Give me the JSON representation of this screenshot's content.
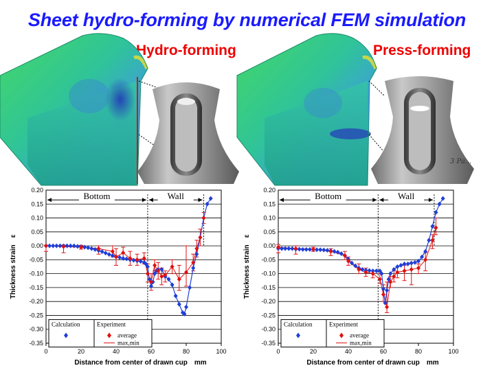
{
  "title": "Sheet hydro-forming by numerical FEM simulation",
  "panels": [
    {
      "method": "Hydro-forming"
    },
    {
      "method": "Press-forming",
      "photo_note": "3 Pa..."
    }
  ],
  "colors": {
    "title": "#1a1aff",
    "method": "#ee0000",
    "calculation": "#1f3fd6",
    "experiment": "#e01010"
  },
  "chart_data": [
    {
      "type": "line",
      "xlabel": "Distance from center of drawn cup　mm",
      "ylabel": "Thickness strain　ε",
      "xlim": [
        0,
        100
      ],
      "ylim": [
        -0.35,
        0.2
      ],
      "x_ticks": [
        "0",
        "20",
        "40",
        "60",
        "80",
        "100"
      ],
      "y_ticks": [
        "0.20",
        "0.15",
        "0.10",
        "0.05",
        "0.00",
        "-0.05",
        "-0.10",
        "-0.15",
        "-0.20",
        "-0.25",
        "-0.30",
        "-0.35"
      ],
      "grid": true,
      "regions": [
        {
          "label": "Bottom",
          "from": 0,
          "to": 58
        },
        {
          "label": "Wall",
          "from": 58,
          "to": 90
        }
      ],
      "legend": {
        "calculation": "Calculation",
        "experiment": "Experiment",
        "average": "average",
        "maxmin": "max,min"
      },
      "legend_position": "bottom-left",
      "series": [
        {
          "name": "Calculation",
          "x": [
            0,
            2,
            4,
            6,
            8,
            10,
            12,
            14,
            16,
            18,
            20,
            22,
            24,
            26,
            28,
            30,
            32,
            34,
            36,
            38,
            40,
            42,
            44,
            46,
            48,
            50,
            52,
            54,
            56,
            57,
            58,
            59,
            60,
            61,
            62,
            63,
            64,
            66,
            68,
            70,
            72,
            74,
            76,
            78,
            79,
            80,
            82,
            84,
            86,
            88,
            90,
            92,
            94
          ],
          "y": [
            0,
            0,
            0,
            0,
            0,
            0,
            0,
            0,
            0,
            -0.002,
            -0.003,
            -0.005,
            -0.007,
            -0.01,
            -0.013,
            -0.017,
            -0.021,
            -0.026,
            -0.031,
            -0.035,
            -0.039,
            -0.042,
            -0.045,
            -0.047,
            -0.05,
            -0.052,
            -0.054,
            -0.056,
            -0.06,
            -0.065,
            -0.075,
            -0.12,
            -0.145,
            -0.13,
            -0.1,
            -0.09,
            -0.085,
            -0.085,
            -0.11,
            -0.12,
            -0.14,
            -0.18,
            -0.21,
            -0.24,
            -0.245,
            -0.22,
            -0.15,
            -0.08,
            -0.03,
            0.03,
            0.1,
            0.15,
            0.17
          ]
        },
        {
          "name": "average",
          "x": [
            0,
            10,
            20,
            30,
            38,
            40,
            44,
            48,
            52,
            56,
            58,
            60,
            62,
            64,
            66,
            68,
            72,
            76,
            80,
            84,
            86,
            88,
            90
          ],
          "y": [
            0,
            -0.003,
            -0.005,
            -0.01,
            -0.02,
            -0.04,
            -0.025,
            -0.045,
            -0.05,
            -0.045,
            -0.1,
            -0.13,
            -0.07,
            -0.09,
            -0.11,
            -0.105,
            -0.075,
            -0.12,
            -0.095,
            -0.06,
            -0.01,
            0.03,
            0.1
          ]
        },
        {
          "name": "max,min",
          "x": [
            0,
            10,
            20,
            30,
            38,
            40,
            44,
            48,
            52,
            56,
            58,
            60,
            62,
            64,
            66,
            68,
            72,
            76,
            80,
            84,
            86,
            88,
            90
          ],
          "ymax": [
            0.002,
            0.003,
            0.002,
            0,
            0,
            -0.01,
            -0.005,
            -0.02,
            -0.03,
            -0.025,
            -0.065,
            -0.1,
            -0.05,
            -0.06,
            -0.08,
            -0.09,
            -0.05,
            -0.07,
            0.0,
            -0.03,
            0.02,
            0.06,
            0.12
          ],
          "ymin": [
            -0.02,
            -0.025,
            -0.012,
            -0.03,
            -0.04,
            -0.07,
            -0.045,
            -0.07,
            -0.07,
            -0.065,
            -0.13,
            -0.16,
            -0.09,
            -0.12,
            -0.14,
            -0.13,
            -0.1,
            -0.16,
            -0.145,
            -0.09,
            -0.04,
            0.0,
            0.08
          ]
        }
      ]
    },
    {
      "type": "line",
      "xlabel": "Distance from center of drawn cup　mm",
      "ylabel": "Thickness strain　ε",
      "xlim": [
        0,
        100
      ],
      "ylim": [
        -0.35,
        0.2
      ],
      "x_ticks": [
        "0",
        "20",
        "40",
        "60",
        "80",
        "100"
      ],
      "y_ticks": [
        "0.20",
        "0.15",
        "0.10",
        "0.05",
        "0.00",
        "-0.05",
        "-0.10",
        "-0.15",
        "-0.20",
        "-0.25",
        "-0.30",
        "-0.35"
      ],
      "grid": true,
      "regions": [
        {
          "label": "Bottom",
          "from": 0,
          "to": 57
        },
        {
          "label": "Wall",
          "from": 57,
          "to": 89
        }
      ],
      "legend": {
        "calculation": "Calculation",
        "experiment": "Experiment",
        "average": "average",
        "maxmin": "max,min"
      },
      "legend_position": "bottom-left",
      "series": [
        {
          "name": "Calculation",
          "x": [
            0,
            2,
            4,
            6,
            8,
            10,
            12,
            14,
            16,
            18,
            20,
            22,
            24,
            26,
            28,
            30,
            32,
            34,
            36,
            38,
            40,
            42,
            44,
            46,
            48,
            50,
            52,
            54,
            56,
            58,
            59,
            60,
            61,
            62,
            63,
            64,
            66,
            68,
            70,
            72,
            74,
            76,
            78,
            80,
            82,
            84,
            86,
            88,
            90,
            92,
            94
          ],
          "y": [
            -0.01,
            -0.01,
            -0.01,
            -0.01,
            -0.01,
            -0.012,
            -0.012,
            -0.013,
            -0.013,
            -0.013,
            -0.013,
            -0.014,
            -0.014,
            -0.015,
            -0.016,
            -0.018,
            -0.02,
            -0.023,
            -0.028,
            -0.035,
            -0.048,
            -0.062,
            -0.072,
            -0.08,
            -0.085,
            -0.088,
            -0.089,
            -0.09,
            -0.09,
            -0.09,
            -0.1,
            -0.155,
            -0.205,
            -0.16,
            -0.12,
            -0.1,
            -0.085,
            -0.075,
            -0.07,
            -0.065,
            -0.065,
            -0.062,
            -0.06,
            -0.055,
            -0.04,
            -0.02,
            0.02,
            0.07,
            0.12,
            0.15,
            0.17
          ]
        },
        {
          "name": "average",
          "x": [
            0,
            10,
            20,
            30,
            38,
            40,
            46,
            50,
            54,
            58,
            60,
            62,
            64,
            66,
            68,
            72,
            76,
            80,
            84,
            88,
            90
          ],
          "y": [
            -0.005,
            -0.01,
            -0.012,
            -0.02,
            -0.035,
            -0.055,
            -0.085,
            -0.095,
            -0.1,
            -0.12,
            -0.175,
            -0.22,
            -0.13,
            -0.11,
            -0.095,
            -0.09,
            -0.085,
            -0.08,
            -0.05,
            0.02,
            0.065
          ]
        },
        {
          "name": "max,min",
          "x": [
            0,
            10,
            20,
            30,
            38,
            40,
            46,
            50,
            54,
            58,
            60,
            62,
            64,
            66,
            68,
            72,
            76,
            80,
            84,
            88,
            90
          ],
          "ymax": [
            0.005,
            0.0,
            -0.005,
            -0.01,
            -0.02,
            -0.04,
            -0.065,
            -0.08,
            -0.09,
            -0.1,
            -0.14,
            -0.13,
            -0.11,
            -0.09,
            -0.075,
            -0.07,
            -0.06,
            -0.065,
            -0.025,
            0.04,
            0.1
          ],
          "ymin": [
            -0.025,
            -0.03,
            -0.02,
            -0.035,
            -0.05,
            -0.07,
            -0.1,
            -0.11,
            -0.115,
            -0.135,
            -0.2,
            -0.24,
            -0.15,
            -0.13,
            -0.115,
            -0.125,
            -0.14,
            -0.1,
            -0.09,
            -0.01,
            0.04
          ]
        }
      ]
    }
  ]
}
